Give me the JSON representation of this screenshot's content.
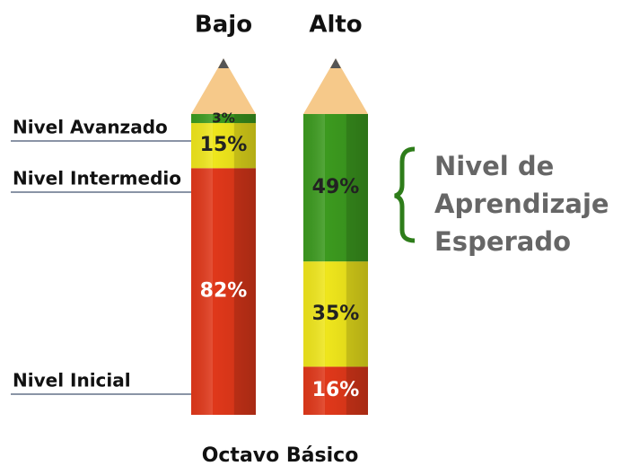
{
  "chart_data": {
    "type": "bar",
    "stacked": true,
    "title": "Octavo Básico",
    "categories": [
      "Bajo",
      "Alto"
    ],
    "series": [
      {
        "name": "Nivel Inicial",
        "color": "#e0381a",
        "values": [
          82,
          16
        ],
        "value_labels": [
          "82%",
          "16%"
        ]
      },
      {
        "name": "Nivel Intermedio",
        "color": "#efe61c",
        "values": [
          15,
          35
        ],
        "value_labels": [
          "15%",
          "35%"
        ]
      },
      {
        "name": "Nivel Avanzado",
        "color": "#3c9a1f",
        "values": [
          3,
          49
        ],
        "value_labels": [
          "3%",
          "49%"
        ]
      }
    ],
    "ylim": [
      0,
      100
    ],
    "annotation": [
      "Nivel de",
      "Aprendizaje",
      "Esperado"
    ]
  }
}
